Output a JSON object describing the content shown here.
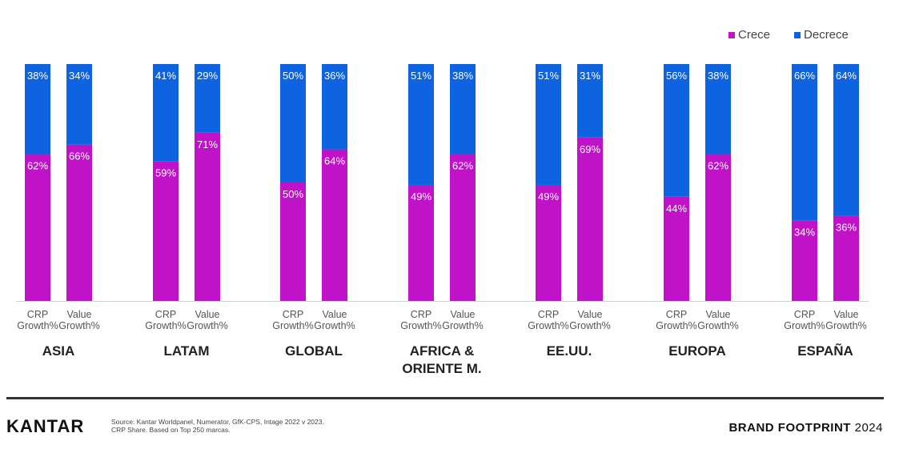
{
  "colors": {
    "crece": "#c013c8",
    "decrece": "#0e64e0"
  },
  "legend": {
    "crece": "Crece",
    "decrece": "Decrece"
  },
  "chart_data": {
    "type": "bar",
    "stacked": true,
    "percent_stacked": true,
    "group_categories": [
      "ASIA",
      "LATAM",
      "GLOBAL",
      "AFRICA & ORIENTE M.",
      "EE.UU.",
      "EUROPA",
      "ESPAÑA"
    ],
    "bar_categories": [
      "CRP Growth%",
      "Value Growth%"
    ],
    "series": [
      {
        "name": "Crece",
        "values": [
          [
            62,
            66
          ],
          [
            59,
            71
          ],
          [
            50,
            64
          ],
          [
            49,
            62
          ],
          [
            49,
            69
          ],
          [
            44,
            62
          ],
          [
            34,
            36
          ]
        ]
      },
      {
        "name": "Decrece",
        "values": [
          [
            38,
            34
          ],
          [
            41,
            29
          ],
          [
            50,
            36
          ],
          [
            51,
            38
          ],
          [
            51,
            31
          ],
          [
            56,
            38
          ],
          [
            66,
            64
          ]
        ]
      }
    ],
    "ylim": [
      0,
      100
    ],
    "legend_position": "top-right",
    "grid": false,
    "value_labels": [
      [
        [
          "62%",
          "66%"
        ],
        [
          "59%",
          "71%"
        ],
        [
          "50%",
          "64%"
        ],
        [
          "49%",
          "62%"
        ],
        [
          "49%",
          "69%"
        ],
        [
          "44%",
          "62%"
        ],
        [
          "34%",
          "36%"
        ]
      ],
      [
        [
          "38%",
          "34%"
        ],
        [
          "41%",
          "29%"
        ],
        [
          "50%",
          "36%"
        ],
        [
          "51%",
          "38%"
        ],
        [
          "51%",
          "31%"
        ],
        [
          "56%",
          "38%"
        ],
        [
          "66%",
          "64%"
        ]
      ]
    ],
    "bar_label_lines": [
      [
        "CRP",
        "Growth%"
      ],
      [
        "Value",
        "Growth%"
      ]
    ],
    "group_label_lines": [
      [
        "ASIA"
      ],
      [
        "LATAM"
      ],
      [
        "GLOBAL"
      ],
      [
        "AFRICA &",
        "ORIENTE M."
      ],
      [
        "EE.UU."
      ],
      [
        "EUROPA"
      ],
      [
        "ESPAÑA"
      ]
    ]
  },
  "footer": {
    "logo": "KANTAR",
    "source": "Source: Kantar Worldpanel, Numerator, GfK-CPS, Intage 2022 v 2023. CRP Share. Based on Top 250 marcas.",
    "brand_bold": "BRAND FOOTPRINT",
    "brand_year": "2024"
  }
}
